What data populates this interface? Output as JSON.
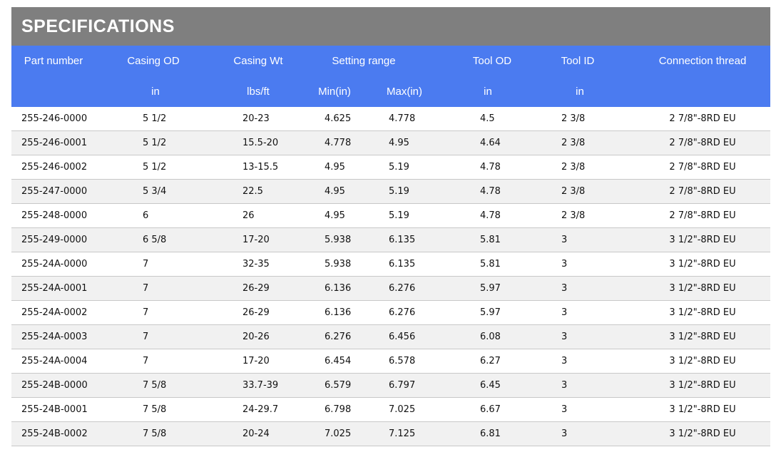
{
  "header": {
    "title": "SPECIFICATIONS"
  },
  "columns": [
    "Part number",
    "Casing OD",
    "Casing Wt",
    "Setting range",
    "Tool OD",
    "Tool ID",
    "Connection thread"
  ],
  "units": [
    "in",
    "lbs/ft",
    "Min(in)",
    "Max(in)",
    "in",
    "in"
  ],
  "rows": [
    [
      "255-246-0000",
      "5 1/2",
      "20-23",
      "4.625",
      "4.778",
      "4.5",
      "2 3/8",
      "2 7/8\"-8RD EU"
    ],
    [
      "255-246-0001",
      "5 1/2",
      "15.5-20",
      "4.778",
      "4.95",
      "4.64",
      "2 3/8",
      "2 7/8\"-8RD EU"
    ],
    [
      "255-246-0002",
      "5 1/2",
      "13-15.5",
      "4.95",
      "5.19",
      "4.78",
      "2 3/8",
      "2 7/8\"-8RD EU"
    ],
    [
      "255-247-0000",
      "5 3/4",
      "22.5",
      "4.95",
      "5.19",
      "4.78",
      "2 3/8",
      "2 7/8\"-8RD EU"
    ],
    [
      "255-248-0000",
      "6",
      "26",
      "4.95",
      "5.19",
      "4.78",
      "2 3/8",
      "2 7/8\"-8RD EU"
    ],
    [
      "255-249-0000",
      "6 5/8",
      "17-20",
      "5.938",
      "6.135",
      "5.81",
      "3",
      "3 1/2\"-8RD EU"
    ],
    [
      "255-24A-0000",
      "7",
      "32-35",
      "5.938",
      "6.135",
      "5.81",
      "3",
      "3 1/2\"-8RD EU"
    ],
    [
      "255-24A-0001",
      "7",
      "26-29",
      "6.136",
      "6.276",
      "5.97",
      "3",
      "3 1/2\"-8RD EU"
    ],
    [
      "255-24A-0002",
      "7",
      "26-29",
      "6.136",
      "6.276",
      "5.97",
      "3",
      "3 1/2\"-8RD EU"
    ],
    [
      "255-24A-0003",
      "7",
      "20-26",
      "6.276",
      "6.456",
      "6.08",
      "3",
      "3 1/2\"-8RD EU"
    ],
    [
      "255-24A-0004",
      "7",
      "17-20",
      "6.454",
      "6.578",
      "6.27",
      "3",
      "3 1/2\"-8RD EU"
    ],
    [
      "255-24B-0000",
      "7 5/8",
      "33.7-39",
      "6.579",
      "6.797",
      "6.45",
      "3",
      "3 1/2\"-8RD EU"
    ],
    [
      "255-24B-0001",
      "7 5/8",
      "24-29.7",
      "6.798",
      "7.025",
      "6.67",
      "3",
      "3 1/2\"-8RD EU"
    ],
    [
      "255-24B-0002",
      "7 5/8",
      "20-24",
      "7.025",
      "7.125",
      "6.81",
      "3",
      "3 1/2\"-8RD EU"
    ]
  ]
}
